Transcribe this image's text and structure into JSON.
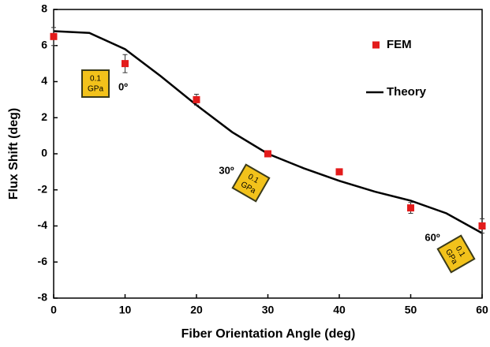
{
  "chart_data": {
    "type": "scatter",
    "x_label": "Fiber Orientation Angle (deg)",
    "y_label": "Flux Shift (deg)",
    "xlim": [
      0,
      60
    ],
    "xticks": [
      0,
      10,
      20,
      30,
      40,
      50,
      60
    ],
    "ylim": [
      -8,
      8
    ],
    "yticks": [
      -8,
      -6,
      -4,
      -2,
      0,
      2,
      4,
      6,
      8
    ],
    "grid": false,
    "legend": "upper right",
    "series": [
      {
        "name": "FEM",
        "type": "scatter",
        "color": "#e31b1b",
        "x": [
          0,
          10,
          20,
          30,
          40,
          50,
          60
        ],
        "values": [
          6.5,
          5.0,
          3.0,
          0.0,
          -1.0,
          -3.0,
          -4.0
        ],
        "errors": [
          0.5,
          0.5,
          0.3,
          0.1,
          0.1,
          0.3,
          0.4
        ]
      },
      {
        "name": "Theory",
        "type": "line",
        "color": "#000000",
        "x": [
          0,
          5,
          10,
          15,
          20,
          25,
          30,
          35,
          40,
          45,
          50,
          55,
          60
        ],
        "values": [
          6.8,
          6.7,
          5.8,
          4.3,
          2.7,
          1.2,
          0.0,
          -0.8,
          -1.5,
          -2.1,
          -2.6,
          -3.3,
          -4.4
        ]
      }
    ],
    "annotations": [
      {
        "angle": "0º",
        "box": [
          "0.1",
          "GPa"
        ]
      },
      {
        "angle": "30º",
        "box": [
          "0.1",
          "GPa"
        ]
      },
      {
        "angle": "60º",
        "box": [
          "0.1",
          "GPa"
        ]
      }
    ]
  }
}
